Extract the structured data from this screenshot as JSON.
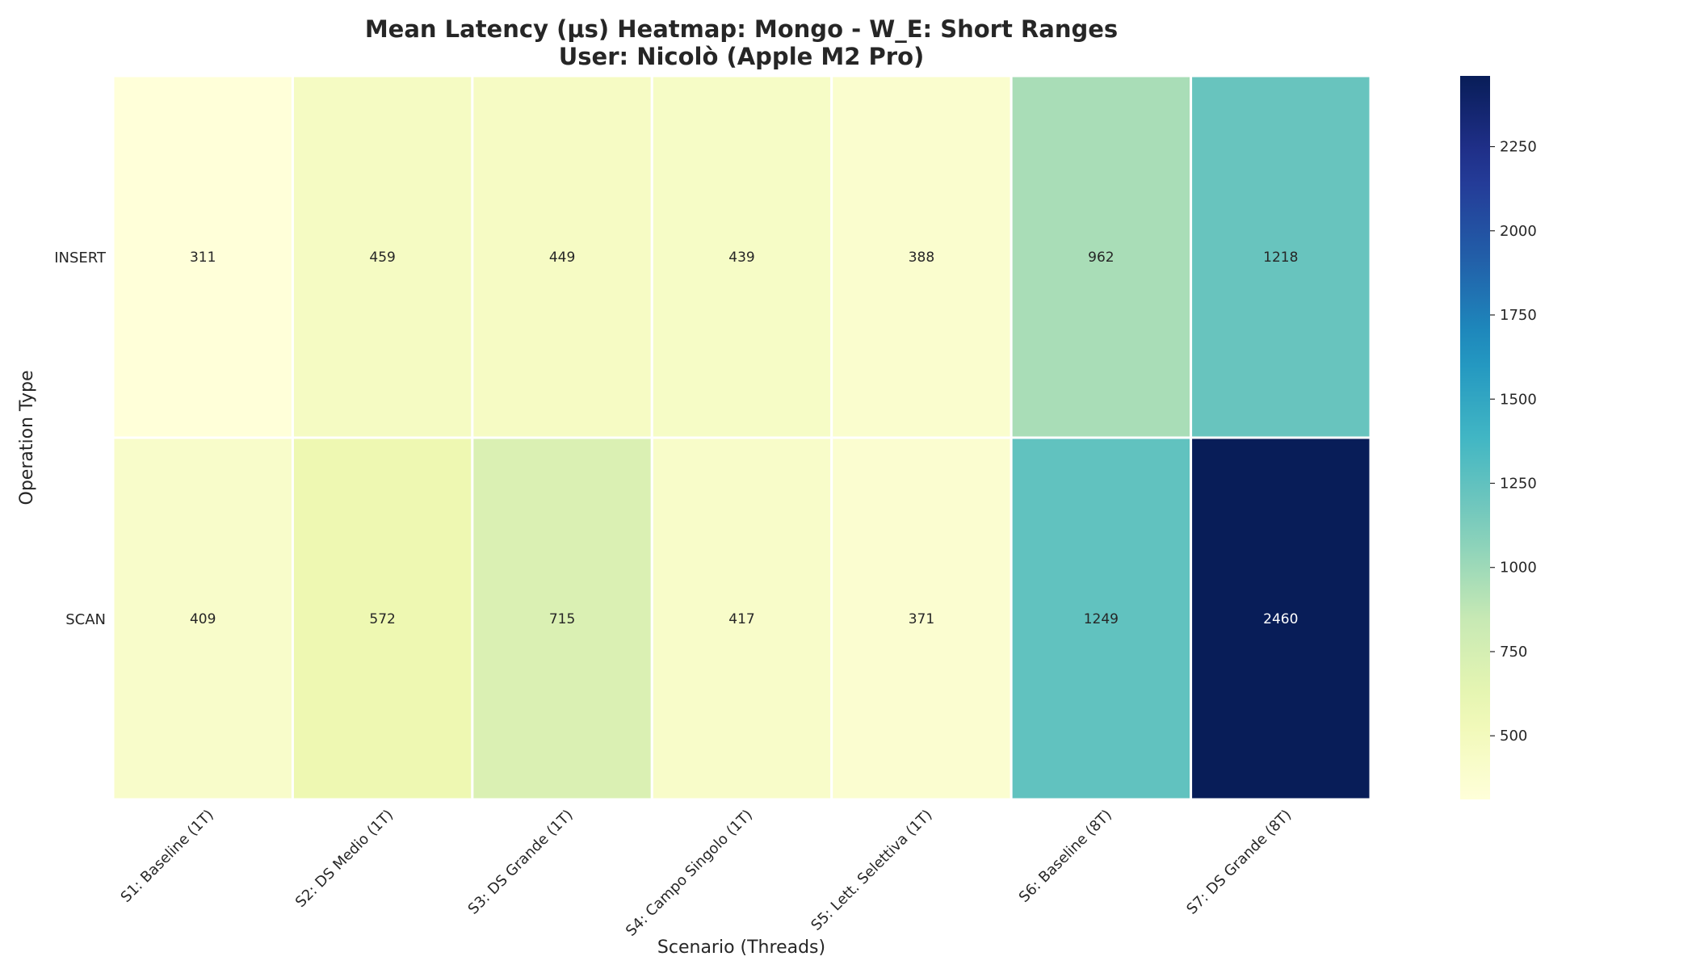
{
  "chart_data": {
    "type": "heatmap",
    "title": "Mean Latency (μs) Heatmap: Mongo - W_E: Short Ranges",
    "subtitle": "User: Nicolò (Apple M2 Pro)",
    "xlabel": "Scenario (Threads)",
    "ylabel": "Operation Type",
    "x_categories": [
      "S1: Baseline (1T)",
      "S2: DS Medio (1T)",
      "S3: DS Grande (1T)",
      "S4: Campo Singolo (1T)",
      "S5: Lett. Selettiva (1T)",
      "S6: Baseline (8T)",
      "S7: DS Grande (8T)"
    ],
    "y_categories": [
      "INSERT",
      "SCAN"
    ],
    "values": [
      [
        311,
        459,
        449,
        439,
        388,
        962,
        1218
      ],
      [
        409,
        572,
        715,
        417,
        371,
        1249,
        2460
      ]
    ],
    "colormap": "YlGnBu",
    "color_range": [
      311,
      2460
    ],
    "colorbar_ticks": [
      500,
      750,
      1000,
      1250,
      1500,
      1750,
      2000,
      2250
    ],
    "annotations": "cell values shown"
  }
}
